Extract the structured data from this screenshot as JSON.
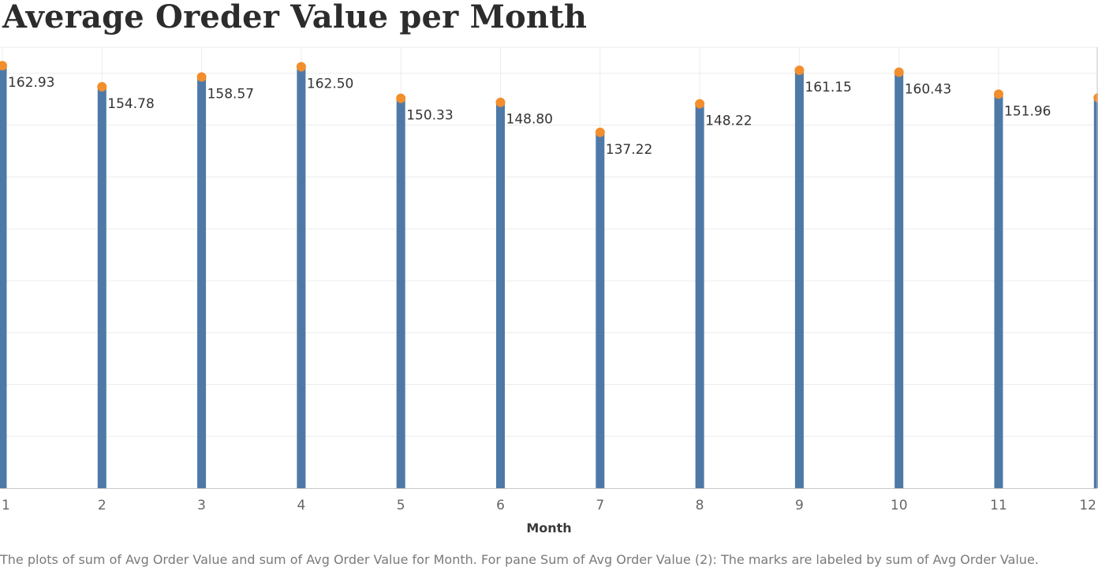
{
  "title": "Average Oreder Value per Month",
  "caption": "The plots of sum of Avg Order Value and sum of Avg Order Value for Month.  For pane Sum of Avg Order Value (2):  The marks are labeled by sum of Avg Order Value.",
  "chart_data": {
    "type": "bar",
    "title": "Average Oreder Value per Month",
    "xlabel": "Month",
    "ylabel": "",
    "categories": [
      "1",
      "2",
      "3",
      "4",
      "5",
      "6",
      "7",
      "8",
      "9",
      "10",
      "11",
      "12"
    ],
    "series": [
      {
        "values": [
          162.93,
          154.78,
          158.57,
          162.5,
          150.33,
          148.8,
          137.22,
          148.22,
          161.15,
          160.43,
          151.96,
          150.5
        ],
        "labels": [
          "162.93",
          "154.78",
          "158.57",
          "162.50",
          "150.33",
          "148.80",
          "137.22",
          "148.22",
          "161.15",
          "160.43",
          "151.96",
          ""
        ]
      }
    ],
    "ylim": [
      0,
      170
    ],
    "grid": true,
    "marks": "lollipop",
    "colors": {
      "bar": "#4e79a7",
      "dot": "#f28e2b",
      "grid": "#ececec",
      "axis": "#c8c8c8",
      "label": "#333333",
      "tick": "#666666"
    }
  }
}
